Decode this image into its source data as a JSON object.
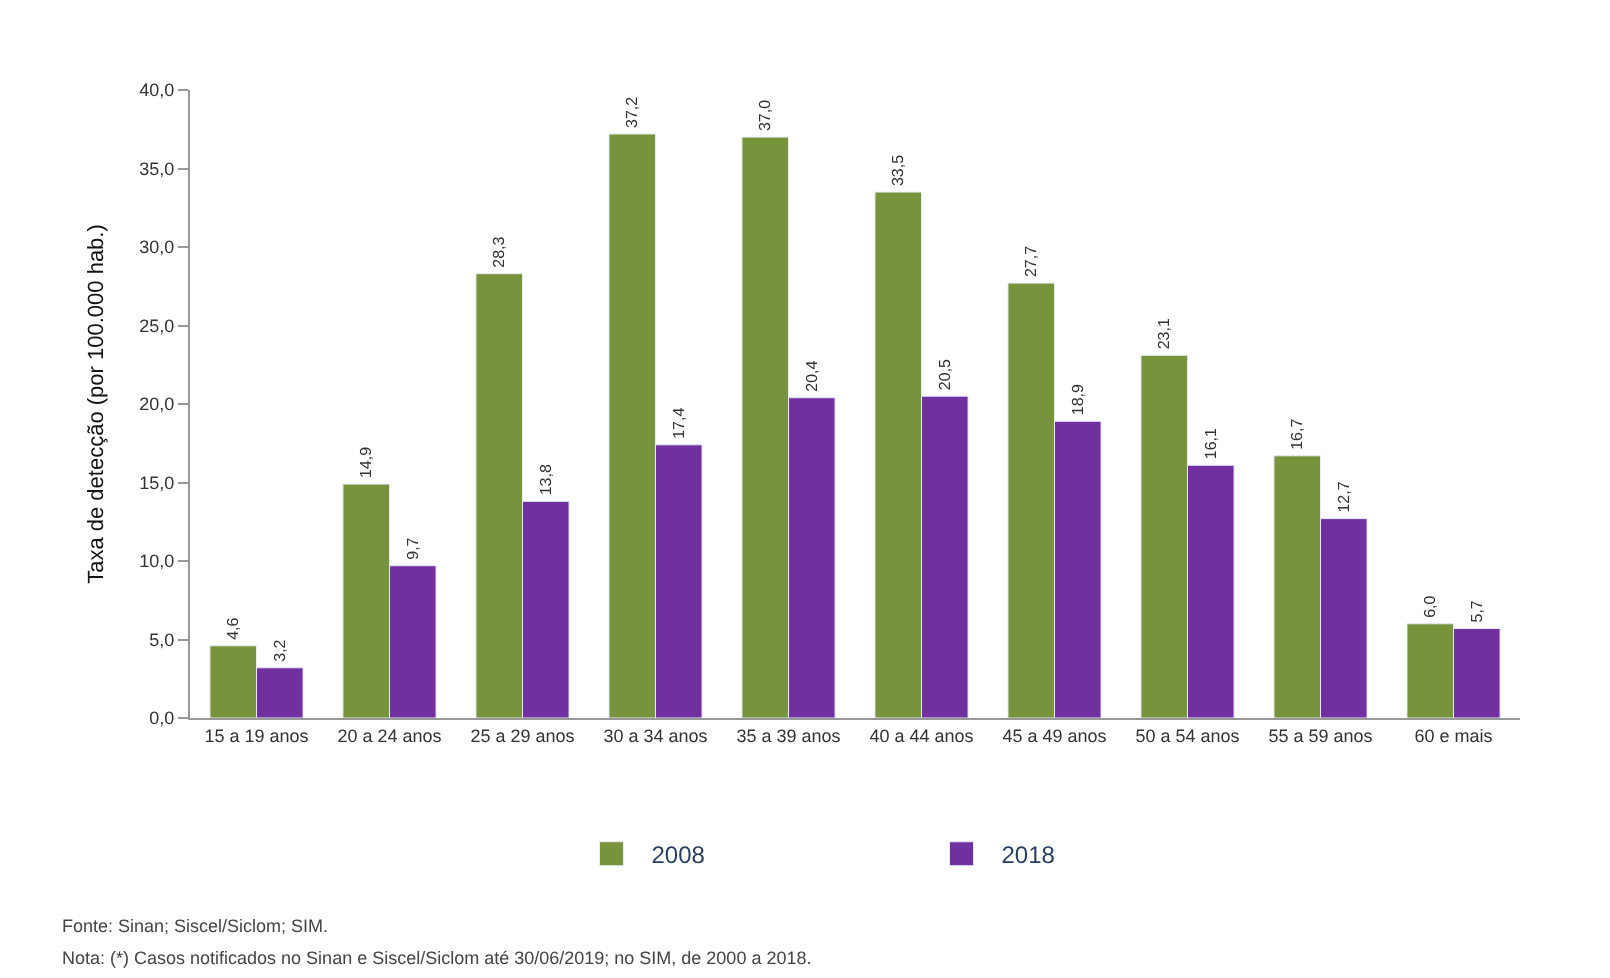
{
  "chart_data": {
    "type": "bar",
    "ylabel": "Taxa de detecção (por 100.000 hab.)",
    "categories": [
      "15 a 19 anos",
      "20 a 24 anos",
      "25 a 29 anos",
      "30 a 34 anos",
      "35 a 39 anos",
      "40 a 44 anos",
      "45 a 49 anos",
      "50 a 54 anos",
      "55 a 59 anos",
      "60 e mais"
    ],
    "series": [
      {
        "name": "2008",
        "color": "#77933c",
        "values": [
          4.6,
          14.9,
          28.3,
          37.2,
          37.0,
          33.5,
          27.7,
          23.1,
          16.7,
          6.0
        ],
        "value_labels": [
          "4,6",
          "14,9",
          "28,3",
          "37,2",
          "37,0",
          "33,5",
          "27,7",
          "23,1",
          "16,7",
          "6,0"
        ]
      },
      {
        "name": "2018",
        "color": "#7030a0",
        "values": [
          3.2,
          9.7,
          13.8,
          17.4,
          20.4,
          20.5,
          18.9,
          16.1,
          12.7,
          5.7
        ],
        "value_labels": [
          "3,2",
          "9,7",
          "13,8",
          "17,4",
          "20,4",
          "20,5",
          "18,9",
          "16,1",
          "12,7",
          "5,7"
        ]
      }
    ],
    "ylim": [
      0,
      40
    ],
    "yticks": [
      {
        "value": 0,
        "label": "0,0"
      },
      {
        "value": 5,
        "label": "5,0"
      },
      {
        "value": 10,
        "label": "10,0"
      },
      {
        "value": 15,
        "label": "15,0"
      },
      {
        "value": 20,
        "label": "20,0"
      },
      {
        "value": 25,
        "label": "25,0"
      },
      {
        "value": 30,
        "label": "30,0"
      },
      {
        "value": 35,
        "label": "35,0"
      },
      {
        "value": 40,
        "label": "40,0"
      }
    ],
    "legend": "bottom",
    "annotations": [
      "Fonte: Sinan; Siscel/Siclom; SIM.",
      "Nota: (*) Casos notificados no Sinan e Siscel/Siclom até 30/06/2019; no SIM, de 2000 a 2018."
    ]
  }
}
